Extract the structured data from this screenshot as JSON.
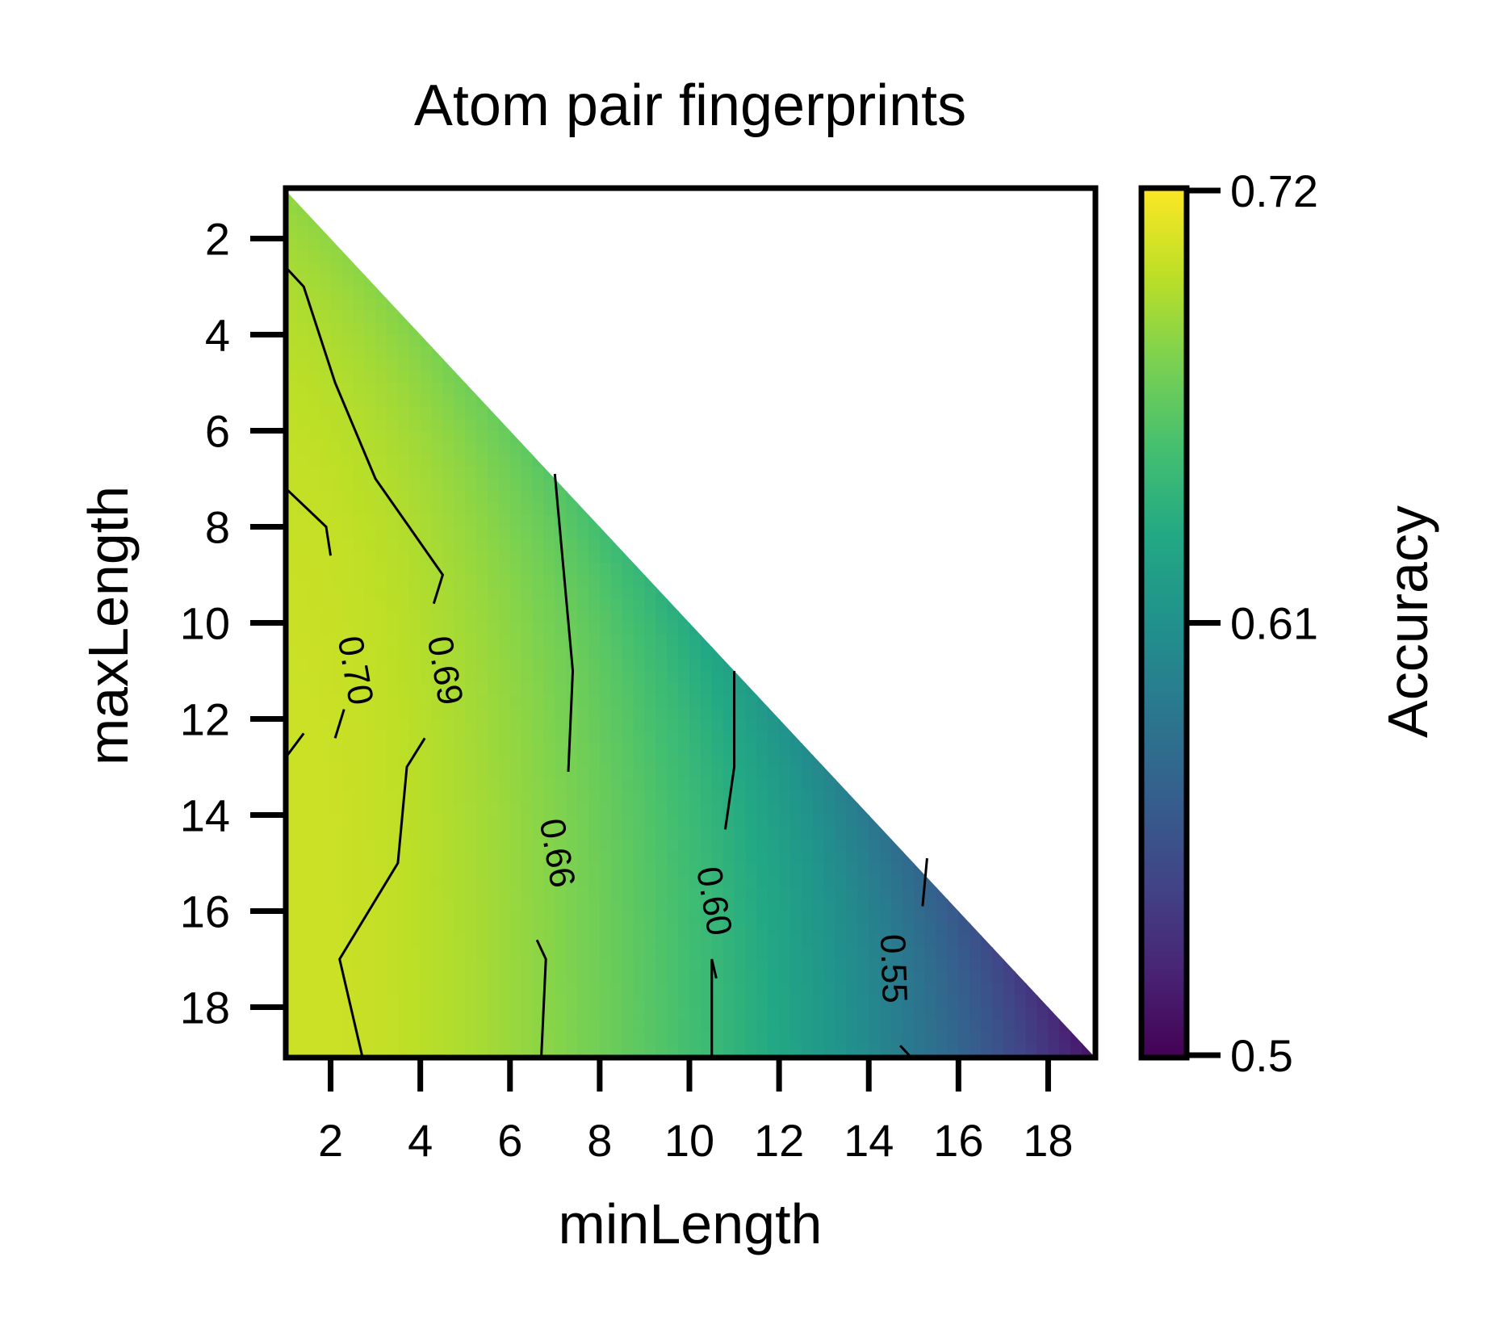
{
  "chart_data": {
    "type": "heatmap",
    "title": "Atom pair fingerprints",
    "xlabel": "minLength",
    "ylabel": "maxLength",
    "xlim": [
      1,
      19
    ],
    "ylim": [
      19,
      1
    ],
    "x_ticks": [
      2,
      4,
      6,
      8,
      10,
      12,
      14,
      16,
      18
    ],
    "y_ticks": [
      2,
      4,
      6,
      8,
      10,
      12,
      14,
      16,
      18
    ],
    "y_inverted": true,
    "region": "lower triangle (maxLength >= minLength)",
    "colormap": "viridis",
    "colorbar": {
      "label": "Accuracy",
      "min": 0.5,
      "max": 0.72,
      "ticks": [
        "0.5",
        "0.61",
        "0.72"
      ]
    },
    "value_samples": [
      {
        "minLength": 1,
        "maxLength": 1,
        "accuracy": 0.68
      },
      {
        "minLength": 1,
        "maxLength": 10,
        "accuracy": 0.705
      },
      {
        "minLength": 2,
        "maxLength": 15,
        "accuracy": 0.703
      },
      {
        "minLength": 4,
        "maxLength": 10,
        "accuracy": 0.695
      },
      {
        "minLength": 6,
        "maxLength": 8,
        "accuracy": 0.675
      },
      {
        "minLength": 7,
        "maxLength": 15,
        "accuracy": 0.665
      },
      {
        "minLength": 11,
        "maxLength": 15,
        "accuracy": 0.6
      },
      {
        "minLength": 15,
        "maxLength": 17,
        "accuracy": 0.55
      },
      {
        "minLength": 19,
        "maxLength": 19,
        "accuracy": 0.5
      }
    ],
    "contours": [
      {
        "level": 0.7,
        "label": "0.70",
        "segments": [
          [
            [
              1,
              7.2
            ],
            [
              1.9,
              8.0
            ],
            [
              2.0,
              8.6
            ]
          ],
          [
            [
              2.3,
              11.8
            ],
            [
              2.1,
              12.4
            ]
          ],
          [
            [
              1,
              12.8
            ],
            [
              1.4,
              12.3
            ]
          ]
        ]
      },
      {
        "level": 0.69,
        "label": "0.69",
        "segments": [
          [
            [
              1,
              2.6
            ],
            [
              1.4,
              3.0
            ],
            [
              2.1,
              5.0
            ],
            [
              3.0,
              7.0
            ],
            [
              4.5,
              9.0
            ],
            [
              4.3,
              9.6
            ]
          ],
          [
            [
              4.1,
              12.4
            ],
            [
              3.7,
              13.0
            ],
            [
              3.5,
              15.0
            ],
            [
              2.2,
              17.0
            ],
            [
              2.7,
              19.0
            ]
          ]
        ]
      },
      {
        "level": 0.66,
        "label": "0.66",
        "segments": [
          [
            [
              7.0,
              6.9
            ],
            [
              7.4,
              11.0
            ],
            [
              7.3,
              13.1
            ]
          ],
          [
            [
              6.6,
              16.6
            ],
            [
              6.8,
              17.0
            ],
            [
              6.7,
              19.0
            ]
          ]
        ]
      },
      {
        "level": 0.6,
        "label": "0.60",
        "segments": [
          [
            [
              11.0,
              11.0
            ],
            [
              11.0,
              13.0
            ],
            [
              10.8,
              14.3
            ]
          ],
          [
            [
              10.6,
              17.4
            ],
            [
              10.5,
              17.0
            ],
            [
              10.5,
              19.0
            ]
          ]
        ]
      },
      {
        "level": 0.55,
        "label": "0.55",
        "segments": [
          [
            [
              15.3,
              14.9
            ],
            [
              15.2,
              15.9
            ]
          ],
          [
            [
              14.9,
              19.0
            ],
            [
              14.7,
              18.8
            ]
          ]
        ]
      }
    ],
    "contour_label_positions": [
      {
        "label": "0.70",
        "x": 2.5,
        "y": 11.0
      },
      {
        "label": "0.69",
        "x": 4.5,
        "y": 11.0
      },
      {
        "label": "0.66",
        "x": 7.0,
        "y": 14.8
      },
      {
        "label": "0.60",
        "x": 10.5,
        "y": 15.8
      },
      {
        "label": "0.55",
        "x": 14.5,
        "y": 17.2
      }
    ]
  }
}
